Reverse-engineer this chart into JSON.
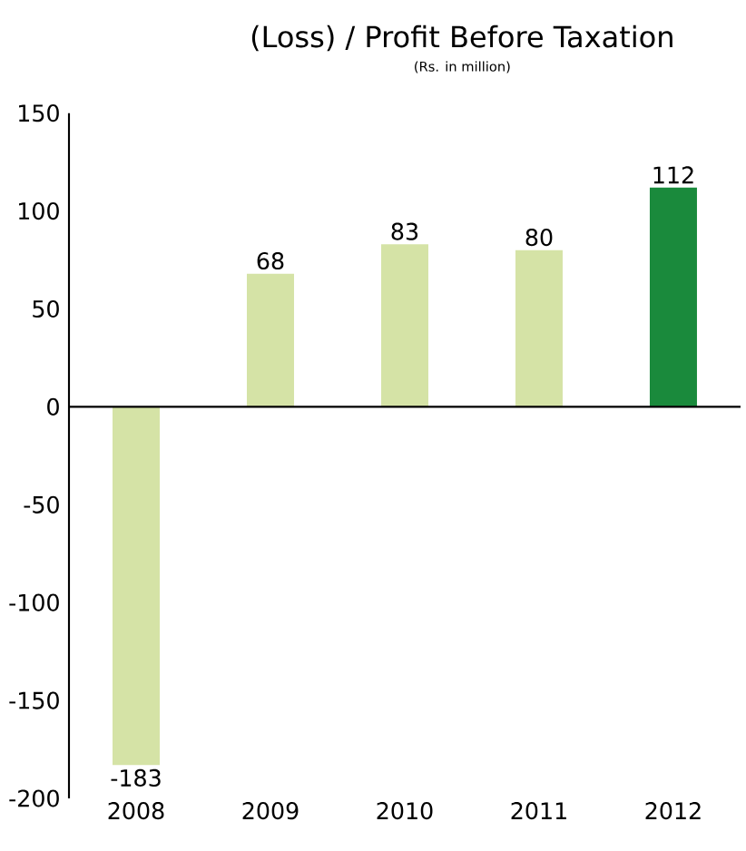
{
  "chart_data": {
    "type": "bar",
    "title": "(Loss) / Profit Before Taxation",
    "subtitle": "(Rs. in million)",
    "categories": [
      "2008",
      "2009",
      "2010",
      "2011",
      "2012"
    ],
    "values": [
      -183,
      68,
      83,
      80,
      112
    ],
    "colors": [
      "#d5e3a6",
      "#d5e3a6",
      "#d5e3a6",
      "#d5e3a6",
      "#1a8a3c"
    ],
    "ylim": [
      -200,
      150
    ],
    "yticks": [
      -200,
      -150,
      -100,
      -50,
      0,
      50,
      100,
      150
    ],
    "data_labels": true
  }
}
